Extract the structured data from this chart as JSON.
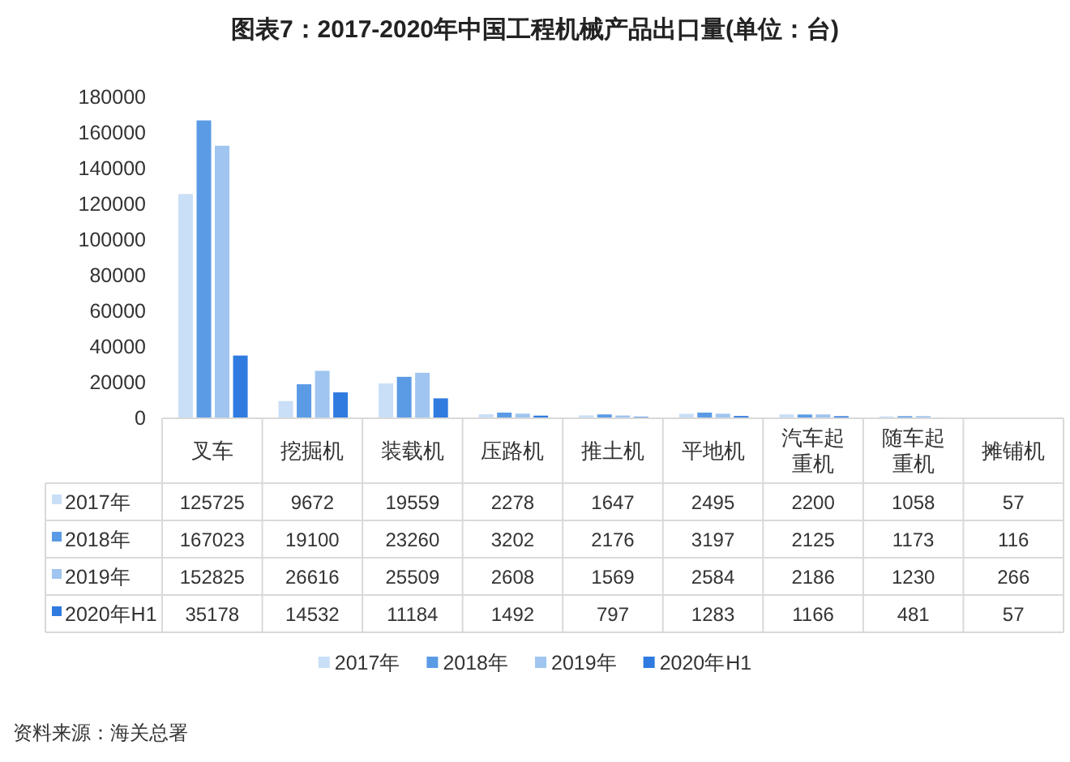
{
  "chart_data": {
    "type": "bar",
    "title": "图表7：2017-2020年中国工程机械产品出口量(单位：台)",
    "categories": [
      "叉车",
      "挖掘机",
      "装载机",
      "压路机",
      "推土机",
      "平地机",
      "汽车起重机",
      "随车起重机",
      "摊铺机"
    ],
    "series": [
      {
        "name": "2017年",
        "color": "#c9dff7",
        "values": [
          125725,
          9672,
          19559,
          2278,
          1647,
          2495,
          2200,
          1058,
          57
        ]
      },
      {
        "name": "2018年",
        "color": "#5b9be6",
        "values": [
          167023,
          19100,
          23260,
          3202,
          2176,
          3197,
          2125,
          1173,
          116
        ]
      },
      {
        "name": "2019年",
        "color": "#9fc5f0",
        "values": [
          152825,
          26616,
          25509,
          2608,
          1569,
          2584,
          2186,
          1230,
          266
        ]
      },
      {
        "name": "2020年H1",
        "color": "#2f7be0",
        "values": [
          35178,
          14532,
          11184,
          1492,
          797,
          1283,
          1166,
          481,
          57
        ]
      }
    ],
    "ylim": [
      0,
      180000
    ],
    "yticks": [
      0,
      20000,
      40000,
      60000,
      80000,
      100000,
      120000,
      140000,
      160000,
      180000
    ],
    "data_labels": true,
    "legend": "bottom",
    "annotations": [
      "资料来源：海关总署"
    ]
  }
}
